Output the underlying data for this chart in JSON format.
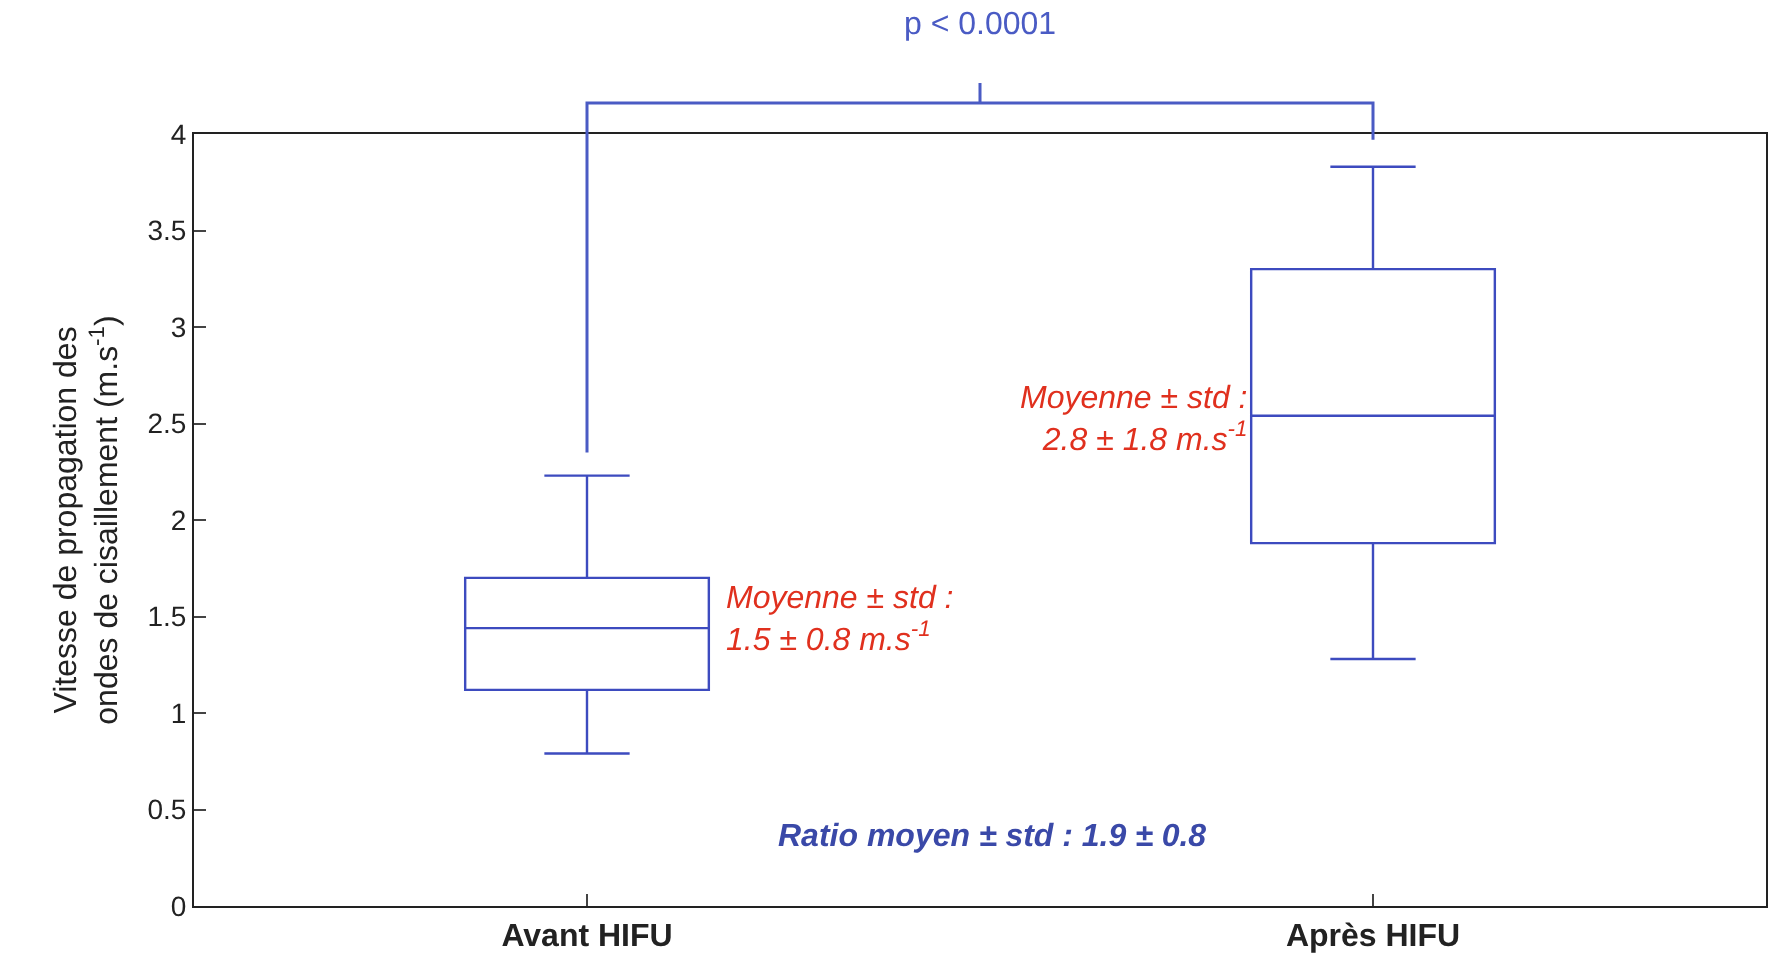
{
  "chart_data": {
    "type": "box",
    "ylabel": "Vitesse de propagation des\nondes de cisaillement (m.s$^{-1}$)",
    "categories": [
      "Avant HIFU",
      "Après HIFU"
    ],
    "boxes": [
      {
        "low": 0.79,
        "q1": 1.12,
        "median": 1.44,
        "q3": 1.7,
        "high": 2.23
      },
      {
        "low": 1.28,
        "q1": 1.88,
        "median": 2.54,
        "q3": 3.3,
        "high": 3.83
      }
    ],
    "color": "#3d4bbf",
    "ylim": [
      0,
      4
    ],
    "yticks": [
      0,
      0.5,
      1,
      1.5,
      2,
      2.5,
      3,
      3.5,
      4
    ],
    "annotations": [
      "p < 0.0001",
      "Moyenne ± std :\n1.5 ± 0.8 m.s$^{-1}$",
      "Moyenne ± std :\n2.8 ± 1.8 m.s$^{-1}$",
      "Ratio moyen ± std : 1.9 ± 0.8"
    ]
  }
}
